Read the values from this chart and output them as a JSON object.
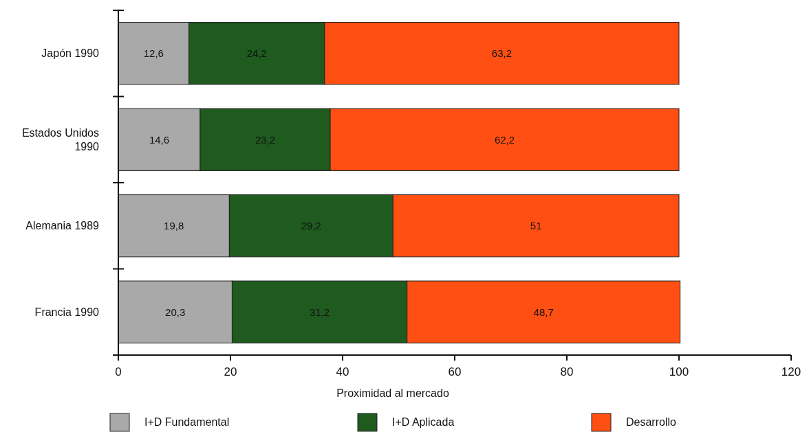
{
  "chart_data": {
    "type": "bar",
    "orientation": "horizontal",
    "stacked": true,
    "xlabel": "Proximidad al mercado",
    "categories": [
      "Japón 1990",
      "Estados Unidos 1990",
      "Alemania 1989",
      "Francia 1990"
    ],
    "series": [
      {
        "name": "I+D Fundamental",
        "color": "#a9a9a9",
        "values": [
          12.6,
          14.6,
          19.8,
          20.3
        ],
        "value_labels": [
          "12,6",
          "14,6",
          "19,8",
          "20,3"
        ]
      },
      {
        "name": "I+D Aplicada",
        "color": "#1f5a1f",
        "values": [
          24.2,
          23.2,
          29.2,
          31.2
        ],
        "value_labels": [
          "24,2",
          "23,2",
          "29,2",
          "31,2"
        ]
      },
      {
        "name": "Desarrollo",
        "color": "#ff4f12",
        "values": [
          63.2,
          62.2,
          51,
          48.7
        ],
        "value_labels": [
          "63,2",
          "62,2",
          "51",
          "48,7"
        ]
      }
    ],
    "xlim": [
      0,
      120
    ],
    "xticks": [
      0,
      20,
      40,
      60,
      80,
      100,
      120
    ],
    "grid": false,
    "legend": "bottom"
  }
}
